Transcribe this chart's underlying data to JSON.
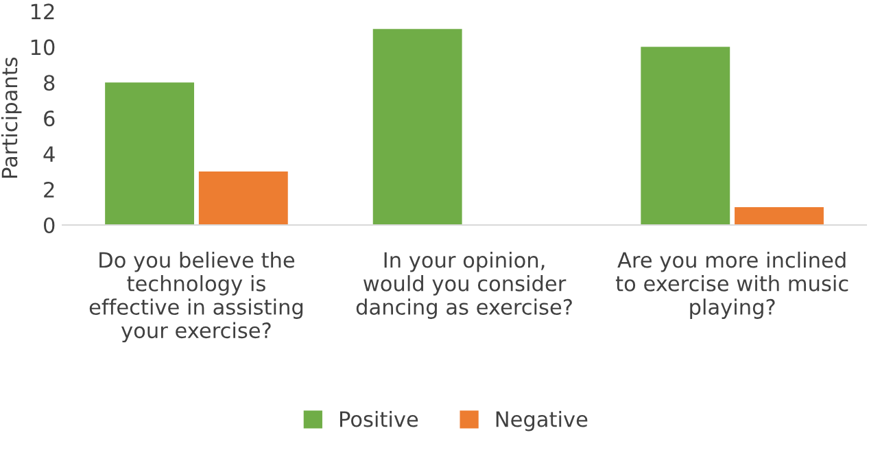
{
  "chart_data": {
    "type": "bar",
    "ylabel": "Participants",
    "categories": [
      "Do you believe the\ntechnology is\neffective in assisting\nyour exercise?",
      "In your opinion,\nwould you consider\ndancing as exercise?",
      "Are you more inclined\nto exercise with music\nplaying?"
    ],
    "series": [
      {
        "name": "Positive",
        "color": "#70ad47",
        "values": [
          8,
          11,
          10
        ]
      },
      {
        "name": "Negative",
        "color": "#ed7d31",
        "values": [
          3,
          0,
          1
        ]
      }
    ],
    "ylim": [
      0,
      12
    ],
    "yticks": [
      0,
      2,
      4,
      6,
      8,
      10,
      12
    ],
    "grid": false,
    "legend": "bottom"
  }
}
